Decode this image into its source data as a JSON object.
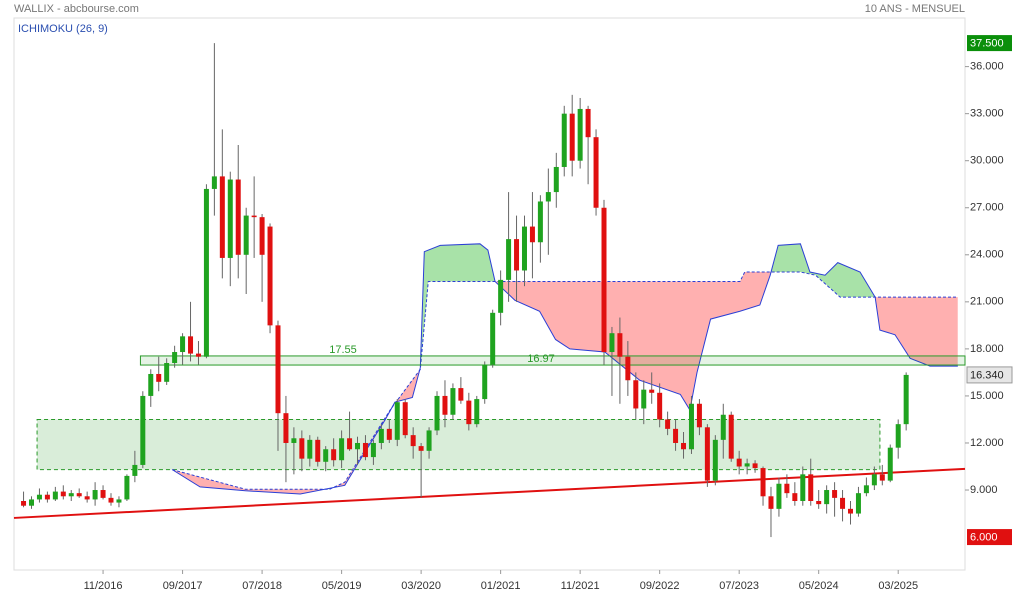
{
  "header": {
    "left": "WALLIX - abcbourse.com",
    "right": "10 ANS - MENSUEL"
  },
  "chart_data": {
    "type": "candlestick",
    "indicator": "ICHIMOKU (26, 9)",
    "up_color": "#1fa31f",
    "down_color": "#e01010",
    "xlim": [
      -1.2,
      118.4
    ],
    "ylim": [
      3.9,
      39.1
    ],
    "xticks": [
      {
        "value": 10,
        "label": "11/2016"
      },
      {
        "value": 20,
        "label": "09/2017"
      },
      {
        "value": 30,
        "label": "07/2018"
      },
      {
        "value": 40,
        "label": "05/2019"
      },
      {
        "value": 50,
        "label": "03/2020"
      },
      {
        "value": 60,
        "label": "01/2021"
      },
      {
        "value": 70,
        "label": "11/2021"
      },
      {
        "value": 80,
        "label": "09/2022"
      },
      {
        "value": 90,
        "label": "07/2023"
      },
      {
        "value": 100,
        "label": "05/2024"
      },
      {
        "value": 110,
        "label": "03/2025"
      }
    ],
    "yticks": [
      {
        "value": 9,
        "label": "9.000"
      },
      {
        "value": 12,
        "label": "12.000"
      },
      {
        "value": 15,
        "label": "15.000"
      },
      {
        "value": 18,
        "label": "18.000"
      },
      {
        "value": 21,
        "label": "21.000"
      },
      {
        "value": 24,
        "label": "24.000"
      },
      {
        "value": 27,
        "label": "27.000"
      },
      {
        "value": 30,
        "label": "30.000"
      },
      {
        "value": 33,
        "label": "33.000"
      },
      {
        "value": 36,
        "label": "36.000"
      }
    ],
    "candles": {
      "x": [
        0,
        1,
        2,
        3,
        4,
        5,
        6,
        7,
        8,
        9,
        10,
        11,
        12,
        13,
        14,
        15,
        16,
        17,
        18,
        19,
        20,
        21,
        22,
        23,
        24,
        25,
        26,
        27,
        28,
        29,
        30,
        31,
        32,
        33,
        34,
        35,
        36,
        37,
        38,
        39,
        40,
        41,
        42,
        43,
        44,
        45,
        46,
        47,
        48,
        49,
        50,
        51,
        52,
        53,
        54,
        55,
        56,
        57,
        58,
        59,
        60,
        61,
        62,
        63,
        64,
        65,
        66,
        67,
        68,
        69,
        70,
        71,
        72,
        73,
        74,
        75,
        76,
        77,
        78,
        79,
        80,
        81,
        82,
        83,
        84,
        85,
        86,
        87,
        88,
        89,
        90,
        91,
        92,
        93,
        94,
        95,
        96,
        97,
        98,
        99,
        100,
        101,
        102,
        103,
        104,
        105,
        106,
        107,
        108,
        109,
        110,
        111
      ],
      "open": [
        8.3,
        8.0,
        8.4,
        8.7,
        8.4,
        8.9,
        8.6,
        8.8,
        8.6,
        8.4,
        9.0,
        8.5,
        8.2,
        8.4,
        9.9,
        10.6,
        15.0,
        16.4,
        15.9,
        17.1,
        17.8,
        18.8,
        17.7,
        17.5,
        28.2,
        29.0,
        23.8,
        28.8,
        24.0,
        26.5,
        26.4,
        25.8,
        19.5,
        13.9,
        12.0,
        12.3,
        11.0,
        12.2,
        10.8,
        11.6,
        10.9,
        12.3,
        11.6,
        12.0,
        11.1,
        12.0,
        12.9,
        12.2,
        14.6,
        12.5,
        11.8,
        11.5,
        12.8,
        15.0,
        13.8,
        15.5,
        14.7,
        13.2,
        14.8,
        17.0,
        20.3,
        22.4,
        25.0,
        23.0,
        25.8,
        24.8,
        27.4,
        28.0,
        29.6,
        33.0,
        30.0,
        33.3,
        31.5,
        27.0,
        17.8,
        19.0,
        17.5,
        16.0,
        14.2,
        15.4,
        15.2,
        13.5,
        12.9,
        12.0,
        11.6,
        14.5,
        13.0,
        9.6,
        12.2,
        13.8,
        11.0,
        10.5,
        10.7,
        10.4,
        8.6,
        7.8,
        9.4,
        8.8,
        8.3,
        10.0,
        8.3,
        8.1,
        9.0,
        8.5,
        7.8,
        7.5,
        8.8,
        9.3,
        10.0,
        9.6,
        11.7,
        13.2
      ],
      "high": [
        8.9,
        8.6,
        9.1,
        8.9,
        9.2,
        9.3,
        9.0,
        9.1,
        8.9,
        9.5,
        9.3,
        8.8,
        8.6,
        10.0,
        11.5,
        15.3,
        16.7,
        17.5,
        17.4,
        18.2,
        19.0,
        21.0,
        18.5,
        28.5,
        37.5,
        32.0,
        29.3,
        31.0,
        27.0,
        29.0,
        26.6,
        26.0,
        19.8,
        15.0,
        13.0,
        12.8,
        12.5,
        12.4,
        11.8,
        12.3,
        12.8,
        14.0,
        12.4,
        12.5,
        12.2,
        13.2,
        13.5,
        14.8,
        14.8,
        13.0,
        12.0,
        13.0,
        15.3,
        16.0,
        15.8,
        16.2,
        15.2,
        15.0,
        17.2,
        20.5,
        23.0,
        28.0,
        26.5,
        26.5,
        28.0,
        27.8,
        29.5,
        30.5,
        33.5,
        34.2,
        34.0,
        33.5,
        32.0,
        27.5,
        19.4,
        20.0,
        18.5,
        16.5,
        16.0,
        16.5,
        15.8,
        14.0,
        13.5,
        12.7,
        15.0,
        14.8,
        13.2,
        12.5,
        14.5,
        14.0,
        11.5,
        11.0,
        10.9,
        10.5,
        9.2,
        9.8,
        10.0,
        9.5,
        10.5,
        11.0,
        9.0,
        9.3,
        9.5,
        9.0,
        8.3,
        9.2,
        9.8,
        10.5,
        10.6,
        11.9,
        13.5,
        16.5
      ],
      "low": [
        7.9,
        7.8,
        8.2,
        8.2,
        8.3,
        8.4,
        8.3,
        8.5,
        8.2,
        8.0,
        8.4,
        8.0,
        7.9,
        8.3,
        9.5,
        10.4,
        14.3,
        15.3,
        15.7,
        16.8,
        17.0,
        17.2,
        17.0,
        17.4,
        26.5,
        22.5,
        22.0,
        22.5,
        21.5,
        23.8,
        21.0,
        19.0,
        11.5,
        9.5,
        10.0,
        10.2,
        10.5,
        10.5,
        10.2,
        10.5,
        10.4,
        11.5,
        10.6,
        10.9,
        10.6,
        11.6,
        12.0,
        11.8,
        12.3,
        11.0,
        8.5,
        11.0,
        12.5,
        13.0,
        13.5,
        14.5,
        12.8,
        13.0,
        14.5,
        16.8,
        19.5,
        21.0,
        21.0,
        22.0,
        22.5,
        23.5,
        24.0,
        27.0,
        29.0,
        29.0,
        29.5,
        28.5,
        26.5,
        17.0,
        15.0,
        14.5,
        15.0,
        13.5,
        13.2,
        14.5,
        13.0,
        12.5,
        11.5,
        11.0,
        11.3,
        12.5,
        9.2,
        9.3,
        11.0,
        10.8,
        10.0,
        10.0,
        10.1,
        8.0,
        6.0,
        7.3,
        8.5,
        8.0,
        8.0,
        8.0,
        7.8,
        7.5,
        7.3,
        7.0,
        6.8,
        7.3,
        8.6,
        9.0,
        9.3,
        9.5,
        11.0,
        12.8
      ],
      "close": [
        8.0,
        8.4,
        8.7,
        8.4,
        8.9,
        8.6,
        8.8,
        8.6,
        8.4,
        9.0,
        8.5,
        8.2,
        8.4,
        9.9,
        10.6,
        15.0,
        16.4,
        15.9,
        17.1,
        17.8,
        18.8,
        17.7,
        17.5,
        28.2,
        29.0,
        23.8,
        28.8,
        24.0,
        26.5,
        26.4,
        24.0,
        19.5,
        13.9,
        12.0,
        12.3,
        11.0,
        12.2,
        10.8,
        11.6,
        10.9,
        12.3,
        11.6,
        12.0,
        11.1,
        12.0,
        12.9,
        12.2,
        14.6,
        12.5,
        11.8,
        11.5,
        12.8,
        15.0,
        13.8,
        15.5,
        14.7,
        13.2,
        14.8,
        17.0,
        20.3,
        22.4,
        25.0,
        23.0,
        25.8,
        24.8,
        27.4,
        28.0,
        29.6,
        33.0,
        30.0,
        33.3,
        31.5,
        27.0,
        17.8,
        19.0,
        17.5,
        16.0,
        14.2,
        15.4,
        15.2,
        13.5,
        12.9,
        12.0,
        11.6,
        14.5,
        13.0,
        9.6,
        12.2,
        13.8,
        11.0,
        10.5,
        10.7,
        10.4,
        8.6,
        7.8,
        9.4,
        8.8,
        8.3,
        10.0,
        8.3,
        8.1,
        9.0,
        8.5,
        7.8,
        7.5,
        8.8,
        9.3,
        10.0,
        9.6,
        11.7,
        13.2,
        16.34
      ]
    },
    "ichimoku": {
      "line_color": "#2b3fd6",
      "bull_color": "#a8e2a8",
      "bear_color": "#ffb0b0",
      "span_a": {
        "x": [
          18.7,
          22.2,
          27.9,
          34.8,
          40.4,
          42.3,
          45.5,
          46.7,
          48.9,
          49.9,
          50.4,
          52.4,
          57.4,
          58.4,
          59.3,
          61.8,
          64.9,
          66.9,
          68.7,
          73.1,
          77.5,
          82.6,
          83.8,
          84.7,
          86.4,
          90.1,
          92.6,
          93.9,
          94.9,
          97.7,
          98.9,
          100.8,
          102.4,
          105.2,
          107.1,
          107.7,
          109.6,
          111.5,
          114.0,
          117.5
        ],
        "values": [
          10.3,
          9.2,
          8.95,
          8.75,
          9.3,
          10.9,
          13.5,
          14.6,
          14.9,
          16.8,
          24.2,
          24.6,
          24.7,
          24.3,
          22.3,
          21.1,
          20.4,
          18.6,
          18.0,
          17.8,
          16.0,
          15.1,
          14.1,
          16.5,
          19.9,
          20.4,
          20.8,
          22.7,
          24.6,
          24.7,
          22.9,
          22.7,
          23.5,
          22.9,
          21.3,
          19.2,
          18.9,
          17.4,
          16.9,
          16.9
        ]
      },
      "span_b": {
        "x": [
          18.7,
          27.9,
          38.5,
          40.4,
          46.1,
          49.9,
          50.9,
          72.5,
          90.1,
          90.7,
          97.7,
          99.6,
          102.7,
          117.5
        ],
        "values": [
          10.3,
          9.05,
          9.05,
          9.5,
          14.1,
          16.7,
          22.3,
          22.3,
          22.3,
          22.9,
          22.9,
          22.7,
          21.3,
          21.3
        ]
      }
    },
    "band": {
      "color": "#2a9a2a",
      "x": [
        14.7,
        118.4
      ],
      "values": [
        17.55,
        16.97
      ]
    },
    "zone": {
      "color": "#2a9a2a",
      "x": [
        1.7,
        107.7
      ],
      "values": [
        10.3,
        13.5
      ]
    },
    "trendline": {
      "color": "#e01010",
      "x": [
        -1.2,
        118.4
      ],
      "values": [
        7.22,
        10.35
      ]
    },
    "markers": {
      "values": [
        37.5,
        16.34,
        6
      ],
      "value_labels": [
        "37.500",
        "16.340",
        "6.000"
      ],
      "colors": [
        "#0a8f0a",
        "#e6e6e6",
        "#e01010"
      ]
    }
  }
}
